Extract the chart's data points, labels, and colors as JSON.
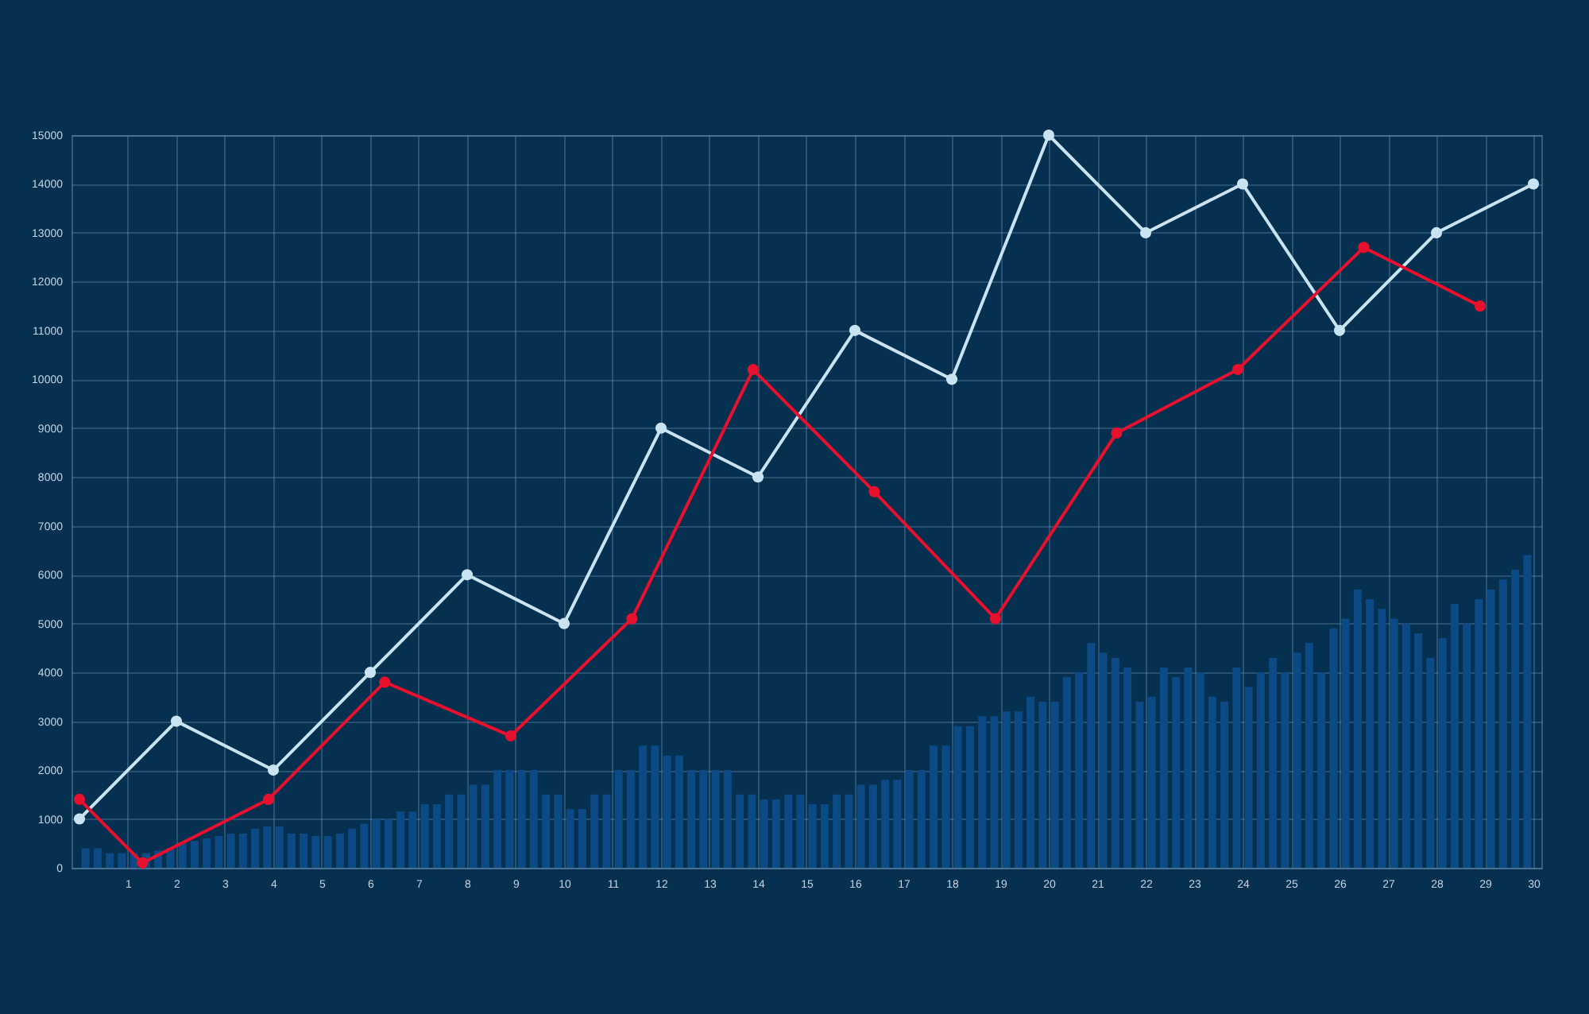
{
  "chart_data": {
    "type": "line",
    "xlim": [
      0,
      30
    ],
    "xticks": [
      1,
      2,
      3,
      4,
      5,
      6,
      7,
      8,
      9,
      10,
      11,
      12,
      13,
      14,
      15,
      16,
      17,
      18,
      19,
      20,
      21,
      22,
      23,
      24,
      25,
      26,
      27,
      28,
      29,
      30
    ],
    "ylim": [
      0,
      15000
    ],
    "yticks": [
      0,
      1000,
      2000,
      3000,
      4000,
      5000,
      6000,
      7000,
      8000,
      9000,
      10000,
      11000,
      12000,
      13000,
      14000,
      15000
    ],
    "grid": true,
    "marker": "circle",
    "series": [
      {
        "type": "bar",
        "color": "#0b4a85",
        "x": [
          0.125,
          0.375,
          0.625,
          0.875,
          1.125,
          1.375,
          1.625,
          1.875,
          2.125,
          2.375,
          2.625,
          2.875,
          3.125,
          3.375,
          3.625,
          3.875,
          4.125,
          4.375,
          4.625,
          4.875,
          5.125,
          5.375,
          5.625,
          5.875,
          6.125,
          6.375,
          6.625,
          6.875,
          7.125,
          7.375,
          7.625,
          7.875,
          8.125,
          8.375,
          8.625,
          8.875,
          9.125,
          9.375,
          9.625,
          9.875,
          10.125,
          10.375,
          10.625,
          10.875,
          11.125,
          11.375,
          11.625,
          11.875,
          12.125,
          12.375,
          12.625,
          12.875,
          13.125,
          13.375,
          13.625,
          13.875,
          14.125,
          14.375,
          14.625,
          14.875,
          15.125,
          15.375,
          15.625,
          15.875,
          16.125,
          16.375,
          16.625,
          16.875,
          17.125,
          17.375,
          17.625,
          17.875,
          18.125,
          18.375,
          18.625,
          18.875,
          19.125,
          19.375,
          19.625,
          19.875,
          20.125,
          20.375,
          20.625,
          20.875,
          21.125,
          21.375,
          21.625,
          21.875,
          22.125,
          22.375,
          22.625,
          22.875,
          23.125,
          23.375,
          23.625,
          23.875,
          24.125,
          24.375,
          24.625,
          24.875,
          25.125,
          25.375,
          25.625,
          25.875,
          26.125,
          26.375,
          26.625,
          26.875,
          27.125,
          27.375,
          27.625,
          27.875,
          28.125,
          28.375,
          28.625,
          28.875,
          29.125,
          29.375,
          29.625,
          29.875
        ],
        "values": [
          400,
          400,
          300,
          300,
          300,
          300,
          350,
          400,
          500,
          550,
          600,
          650,
          700,
          700,
          800,
          850,
          850,
          700,
          700,
          650,
          650,
          700,
          800,
          900,
          1000,
          1000,
          1150,
          1150,
          1300,
          1300,
          1500,
          1500,
          1700,
          1700,
          2000,
          2000,
          2000,
          2000,
          1500,
          1500,
          1200,
          1200,
          1500,
          1500,
          2000,
          2000,
          2500,
          2500,
          2300,
          2300,
          2000,
          2000,
          2000,
          2000,
          1500,
          1500,
          1400,
          1400,
          1500,
          1500,
          1300,
          1300,
          1500,
          1500,
          1700,
          1700,
          1800,
          1800,
          2000,
          2000,
          2500,
          2500,
          2900,
          2900,
          3100,
          3100,
          3200,
          3200,
          3500,
          3400,
          3400,
          3900,
          4000,
          4600,
          4400,
          4300,
          4100,
          3400,
          3500,
          4100,
          3900,
          4100,
          4000,
          3500,
          3400,
          4100,
          3700,
          4000,
          4300,
          4000,
          4400,
          4600,
          4000,
          4900,
          5100,
          5700,
          5500,
          5300,
          5100,
          5000,
          4800,
          4300,
          4700,
          5400,
          5000,
          5500,
          5700,
          5900,
          6100,
          6400
        ]
      },
      {
        "color": "#c8e4f2",
        "x": [
          0,
          2,
          4,
          6,
          8,
          10,
          12,
          14,
          16,
          18,
          20,
          22,
          24,
          26,
          28,
          30
        ],
        "values": [
          1000,
          3000,
          2000,
          4000,
          6000,
          5000,
          9000,
          8000,
          11000,
          10000,
          15000,
          13000,
          14000,
          11000,
          13000,
          14000
        ]
      },
      {
        "color": "#e8112d",
        "x": [
          0,
          1.3,
          3.9,
          6.3,
          8.9,
          11.4,
          13.9,
          16.4,
          18.9,
          21.4,
          23.9,
          26.5,
          28.9
        ],
        "values": [
          1400,
          100,
          1400,
          3800,
          2700,
          5100,
          10200,
          7700,
          5100,
          8900,
          10200,
          12700,
          11500
        ]
      }
    ]
  }
}
